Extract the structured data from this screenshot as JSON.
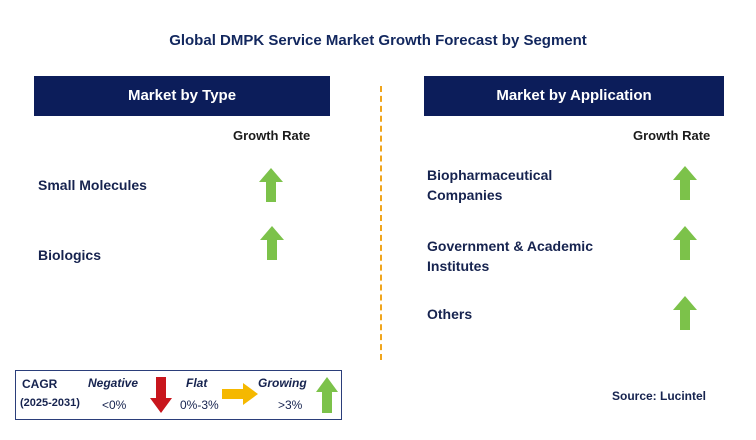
{
  "title": "Global DMPK Service Market Growth Forecast by Segment",
  "left_panel": {
    "header": "Market by Type",
    "growth_label": "Growth Rate",
    "rows": [
      {
        "label": "Small Molecules",
        "trend": "growing"
      },
      {
        "label": "Biologics",
        "trend": "growing"
      }
    ]
  },
  "right_panel": {
    "header": "Market by Application",
    "growth_label": "Growth Rate",
    "rows": [
      {
        "label_line1": "Biopharmaceutical",
        "label_line2": "Companies",
        "trend": "growing"
      },
      {
        "label_line1": "Government & Academic",
        "label_line2": "Institutes",
        "trend": "growing"
      },
      {
        "label_line1": "Others",
        "label_line2": "",
        "trend": "growing"
      }
    ]
  },
  "legend": {
    "cagr_label": "CAGR",
    "period": "(2025-2031)",
    "negative_label": "Negative",
    "negative_range": "<0%",
    "flat_label": "Flat",
    "flat_range": "0%-3%",
    "growing_label": "Growing",
    "growing_range": ">3%"
  },
  "source": "Source: Lucintel",
  "colors": {
    "header_bg": "#0c1d5a",
    "growing_arrow": "#7cc24a",
    "negative_arrow": "#c8161d",
    "flat_arrow": "#f5b800",
    "divider": "#f0a51d"
  }
}
